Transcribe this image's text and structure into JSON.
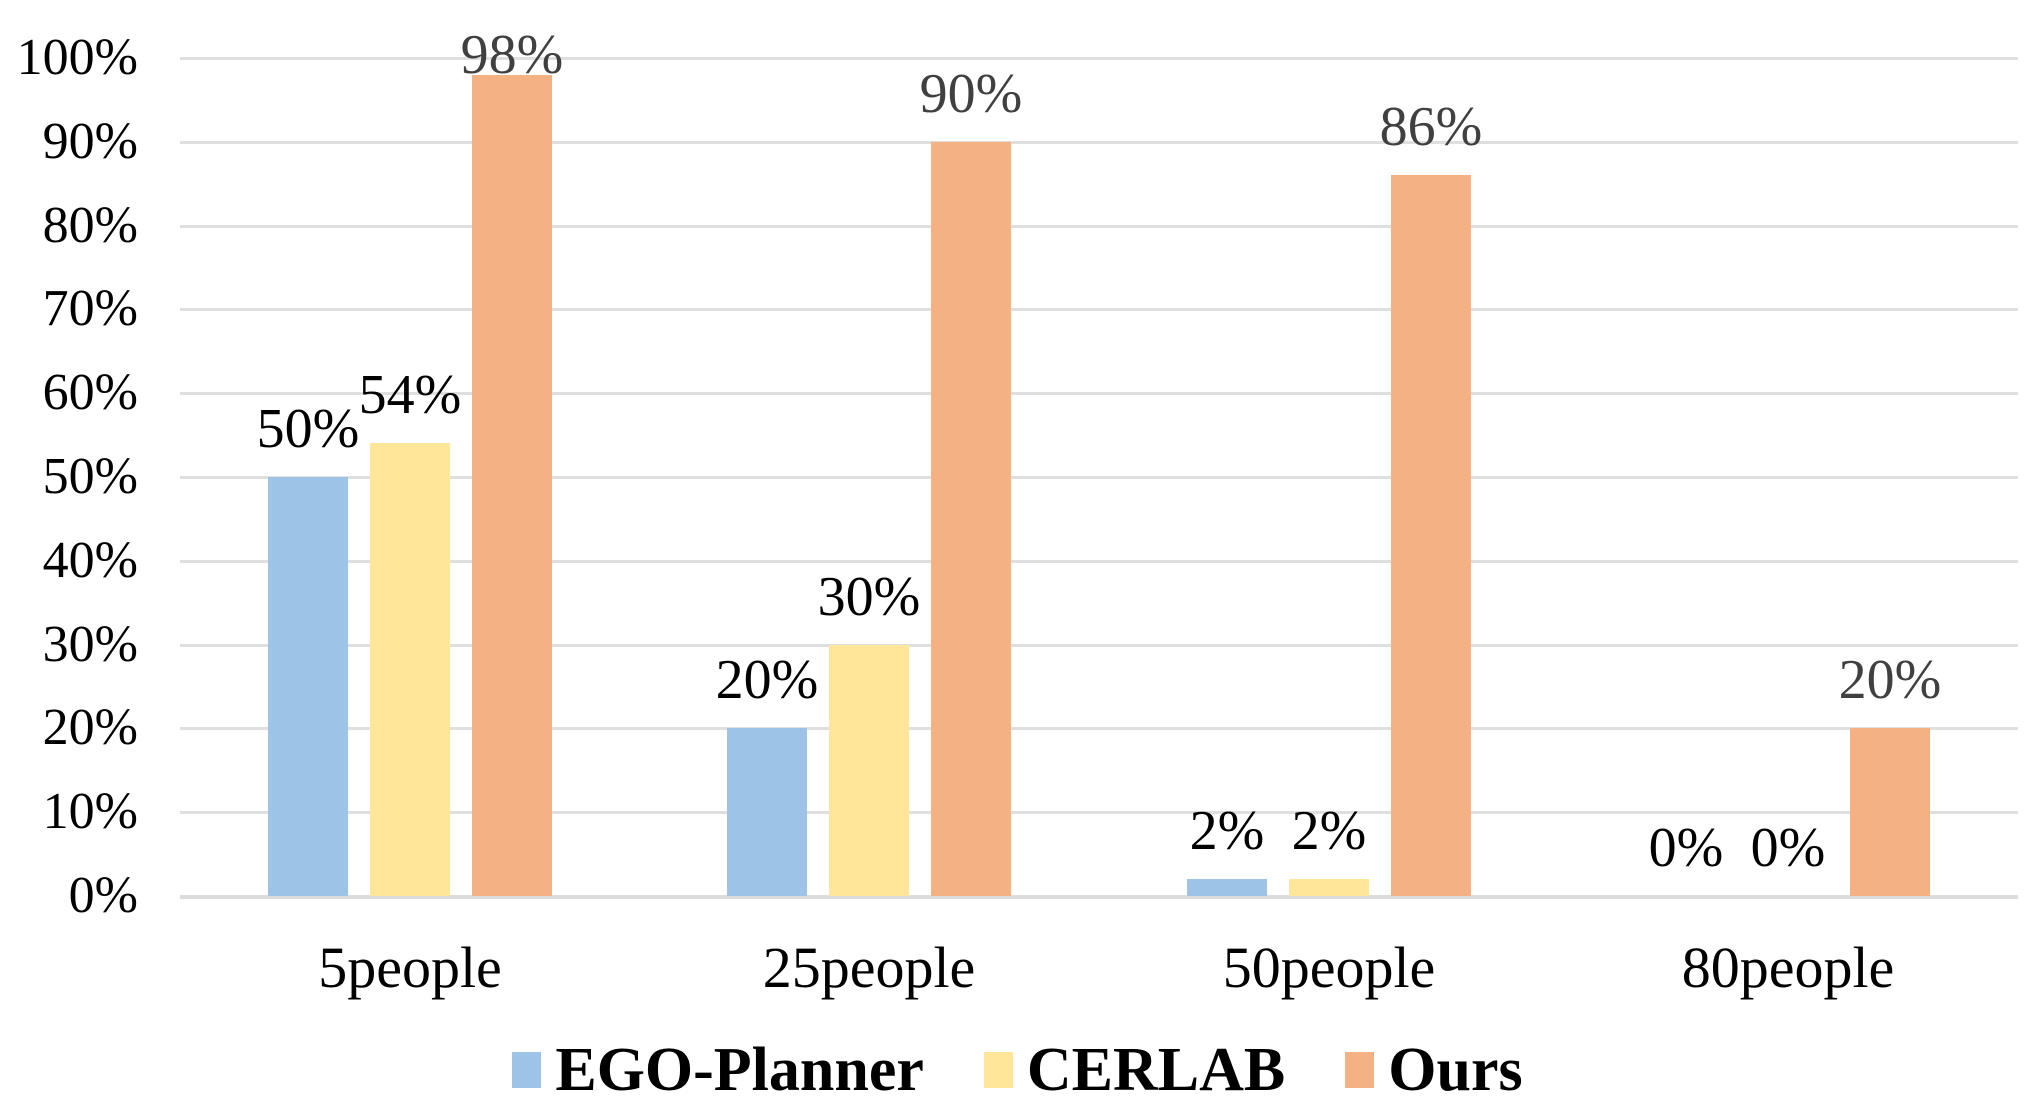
{
  "chart_data": {
    "type": "bar",
    "title": "",
    "xlabel": "",
    "ylabel": "",
    "categories": [
      "5people",
      "25people",
      "50people",
      "80people"
    ],
    "series": [
      {
        "name": "EGO-Planner",
        "color": "#9DC3E6",
        "label_color": "#000000",
        "values": [
          50,
          20,
          2,
          0
        ],
        "labels": [
          "50%",
          "20%",
          "2%",
          "0%"
        ]
      },
      {
        "name": "CERLAB",
        "color": "#FFE699",
        "label_color": "#000000",
        "values": [
          54,
          30,
          2,
          0
        ],
        "labels": [
          "54%",
          "30%",
          "2%",
          "0%"
        ]
      },
      {
        "name": "Ours",
        "color": "#F4B183",
        "label_color": "#404040",
        "values": [
          98,
          90,
          86,
          20
        ],
        "labels": [
          "98%",
          "90%",
          "86%",
          "20%"
        ]
      }
    ],
    "y_ticks": [
      "0%",
      "10%",
      "20%",
      "30%",
      "40%",
      "50%",
      "60%",
      "70%",
      "80%",
      "90%",
      "100%"
    ],
    "ylim": [
      0,
      100
    ],
    "y_step": 10,
    "grid": true,
    "gridline_color": "#DFDFDF",
    "axis_line_color": "#DCDCDC",
    "legend_position": "bottom"
  }
}
